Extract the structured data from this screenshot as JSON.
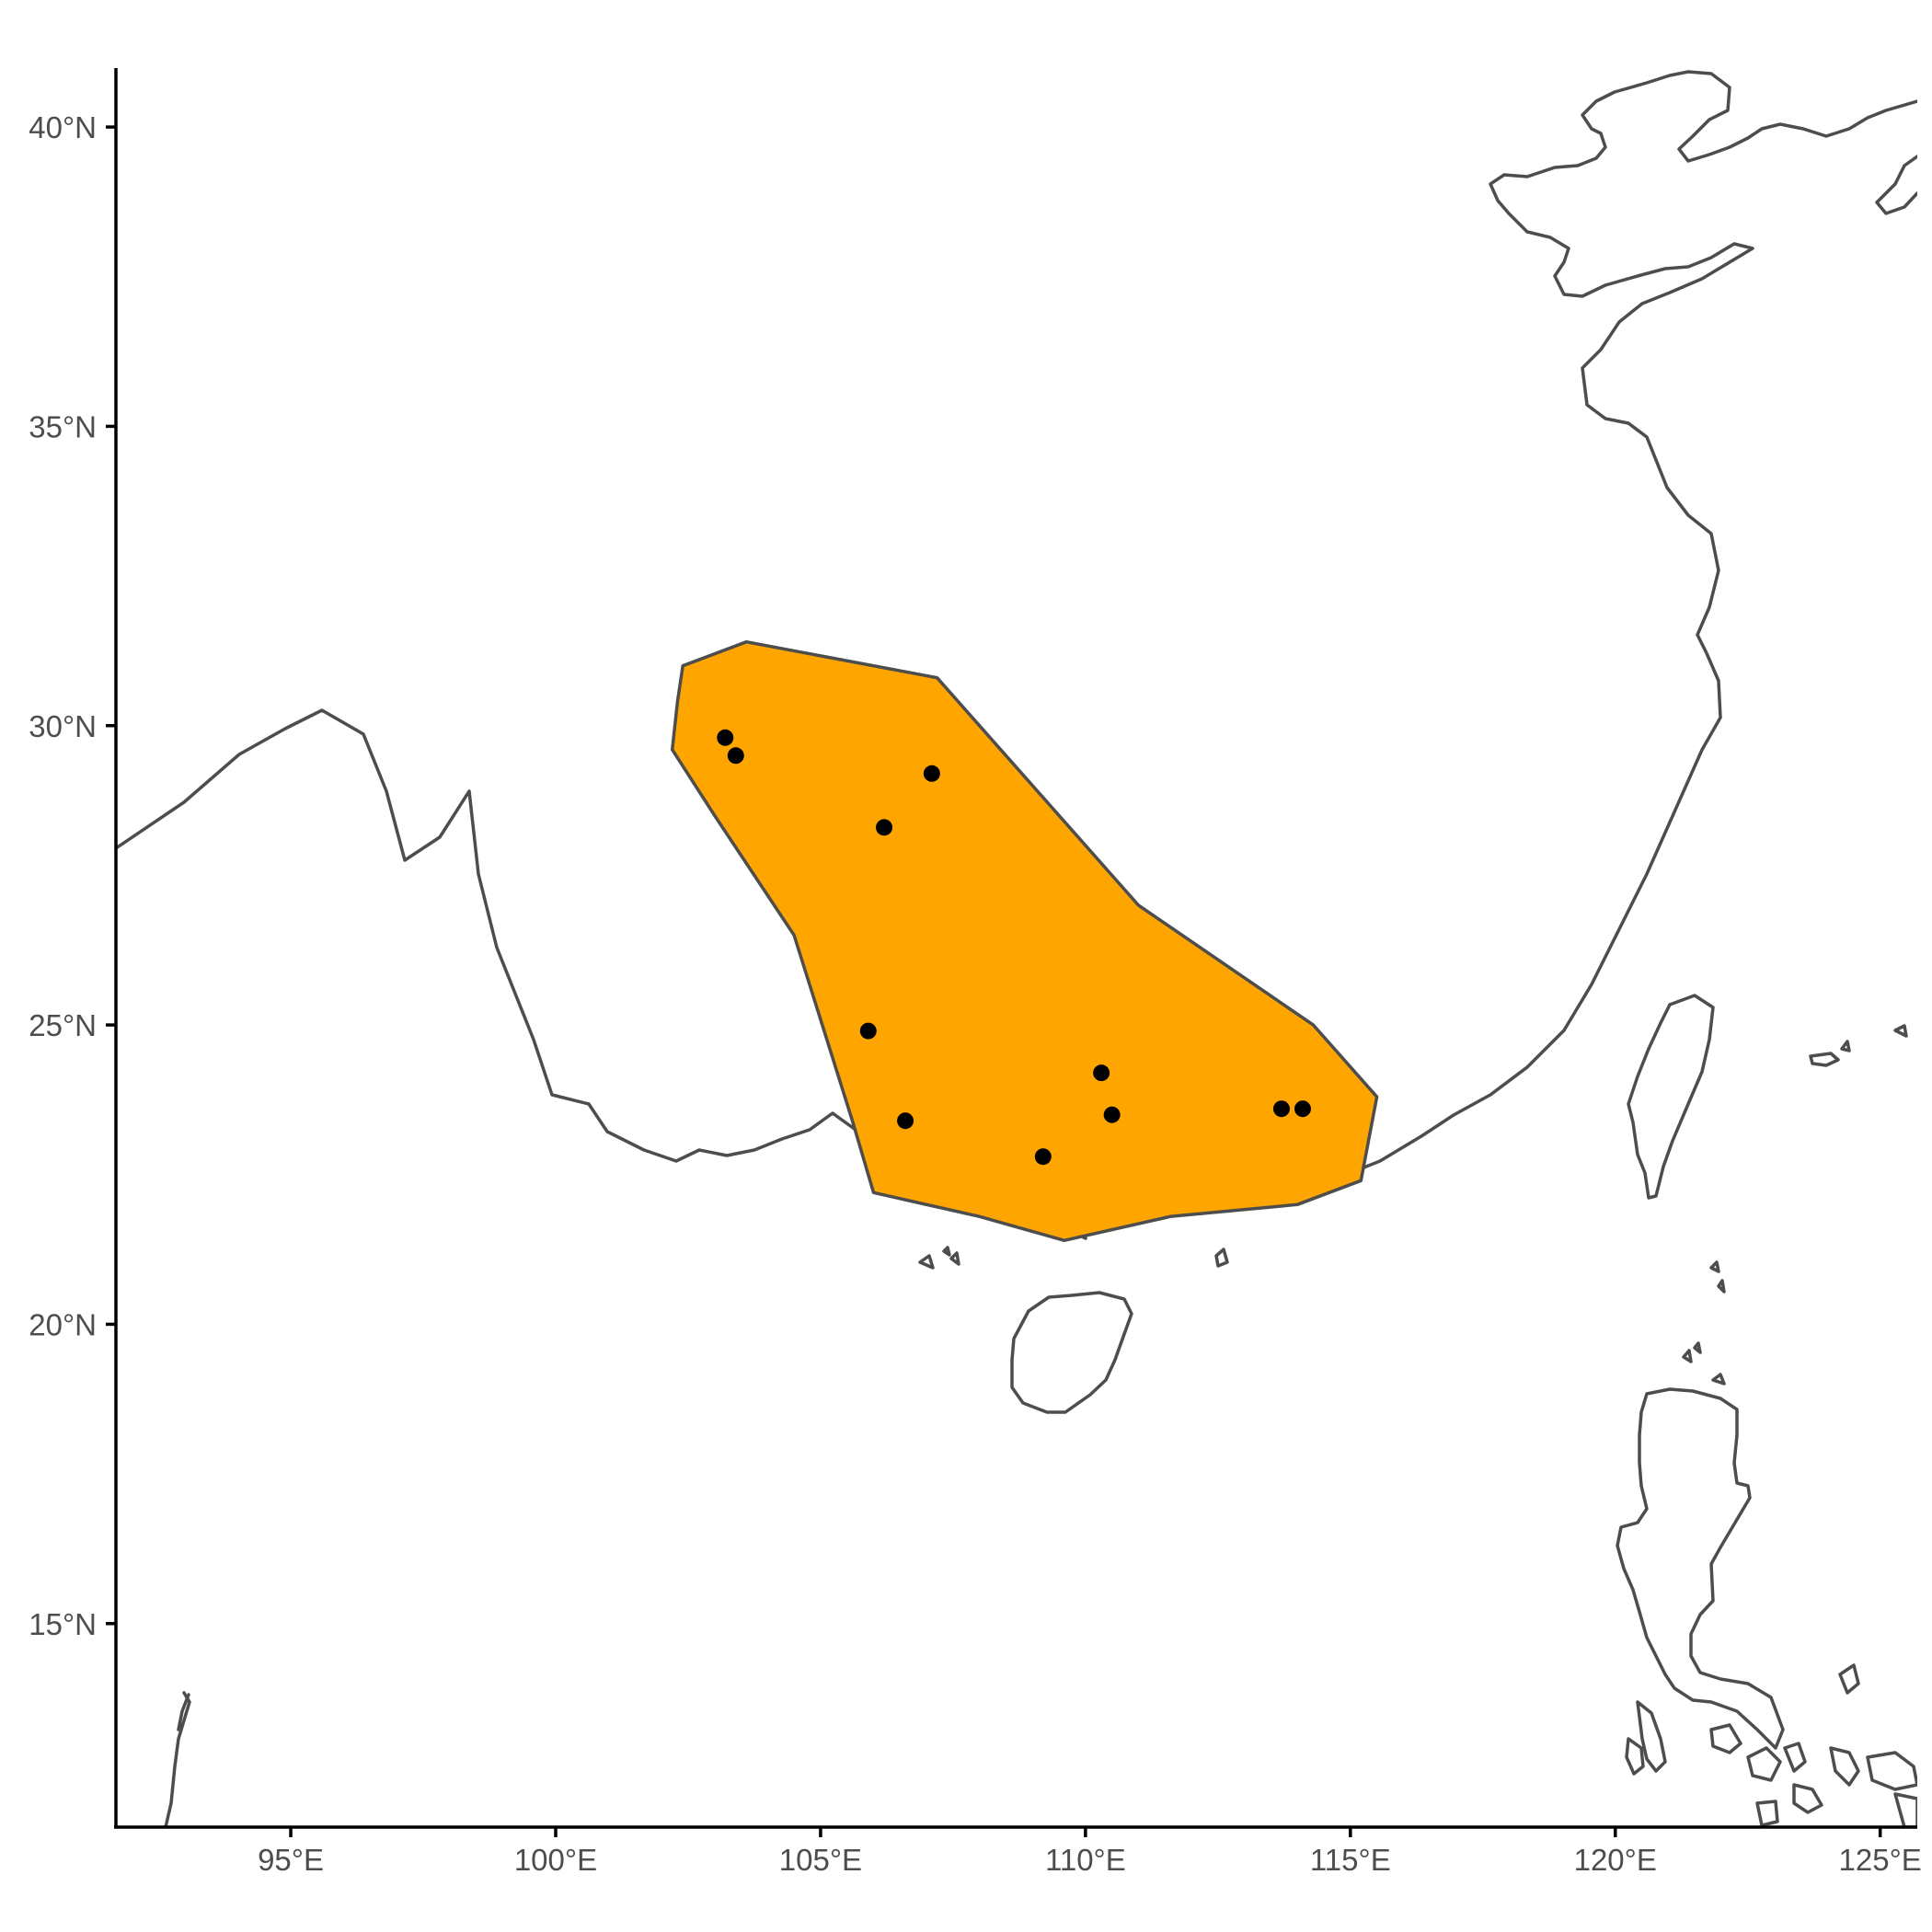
{
  "axes": {
    "x": {
      "ticks": [
        {
          "value": 95,
          "label": "95°E"
        },
        {
          "value": 100,
          "label": "100°E"
        },
        {
          "value": 105,
          "label": "105°E"
        },
        {
          "value": 110,
          "label": "110°E"
        },
        {
          "value": 115,
          "label": "115°E"
        },
        {
          "value": 120,
          "label": "120°E"
        },
        {
          "value": 125,
          "label": "125°E"
        }
      ]
    },
    "y": {
      "ticks": [
        {
          "value": 15,
          "label": "15°N"
        },
        {
          "value": 20,
          "label": "20°N"
        },
        {
          "value": 25,
          "label": "25°N"
        },
        {
          "value": 30,
          "label": "30°N"
        },
        {
          "value": 35,
          "label": "35°N"
        },
        {
          "value": 40,
          "label": "40°N"
        }
      ]
    }
  },
  "colors": {
    "range_fill": "#FFA500",
    "range_stroke": "#4d4d4d",
    "coastline": "#4d4d4d",
    "points": "#000000"
  },
  "chart_data": {
    "type": "scatter",
    "title": "",
    "xlabel": "",
    "ylabel": "",
    "xlim": [
      91.7,
      125.7
    ],
    "ylim": [
      11.6,
      41.2
    ],
    "grid": false,
    "legend": "none",
    "range_polygon": {
      "vertices": [
        [
          102.4,
          31.0
        ],
        [
          103.6,
          31.4
        ],
        [
          107.2,
          30.8
        ],
        [
          108.2,
          29.8
        ],
        [
          111.0,
          27.0
        ],
        [
          114.3,
          25.0
        ],
        [
          115.5,
          23.8
        ],
        [
          115.2,
          22.4
        ],
        [
          114.0,
          22.0
        ],
        [
          111.6,
          21.8
        ],
        [
          109.6,
          21.4
        ],
        [
          108.0,
          21.8
        ],
        [
          106.0,
          22.2
        ],
        [
          105.6,
          23.4
        ],
        [
          104.5,
          26.5
        ],
        [
          103.0,
          28.5
        ],
        [
          102.2,
          29.6
        ],
        [
          102.3,
          30.4
        ]
      ]
    },
    "series": [
      {
        "x": [
          103.2,
          103.4,
          107.1,
          106.2,
          105.9,
          106.6,
          109.2,
          110.3,
          110.5,
          113.7,
          114.1
        ],
        "y": [
          29.8,
          29.5,
          29.2,
          28.3,
          24.9,
          23.4,
          22.8,
          24.2,
          23.5,
          23.6,
          23.6
        ]
      }
    ]
  }
}
